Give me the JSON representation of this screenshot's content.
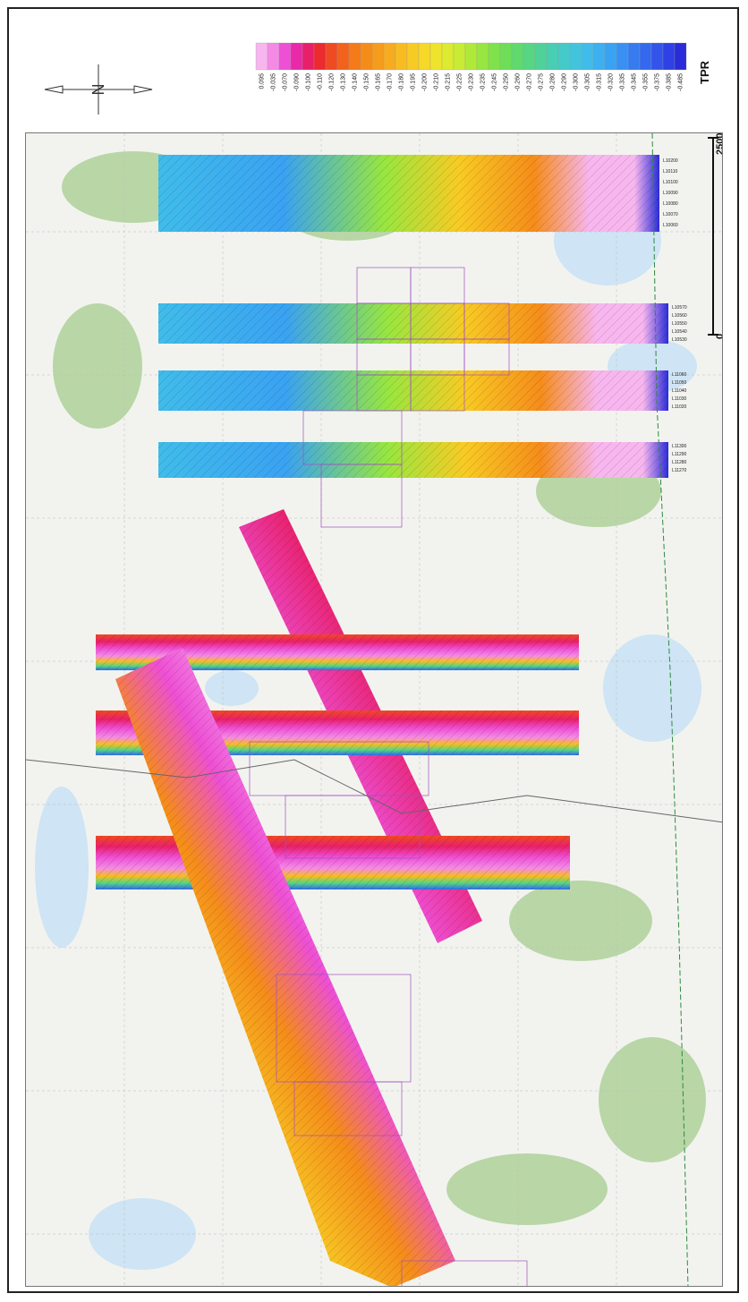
{
  "legend": {
    "title": "TPR",
    "values": [
      "0.095",
      "-0.035",
      "-0.070",
      "-0.090",
      "-0.100",
      "-0.110",
      "-0.120",
      "-0.130",
      "-0.140",
      "-0.150",
      "-0.165",
      "-0.170",
      "-0.180",
      "-0.195",
      "-0.200",
      "-0.210",
      "-0.215",
      "-0.225",
      "-0.230",
      "-0.235",
      "-0.245",
      "-0.250",
      "-0.260",
      "-0.270",
      "-0.275",
      "-0.280",
      "-0.290",
      "-0.300",
      "-0.305",
      "-0.315",
      "-0.320",
      "-0.335",
      "-0.345",
      "-0.355",
      "-0.375",
      "-0.385",
      "-0.485"
    ],
    "colors": [
      "#f7b6ee",
      "#f48ae6",
      "#ee4fd4",
      "#e82aa8",
      "#e8206a",
      "#ec2a30",
      "#f04a22",
      "#f2621c",
      "#f47a1a",
      "#f58c1a",
      "#f69c1c",
      "#f7ac20",
      "#f8bc22",
      "#f8cb24",
      "#f6d828",
      "#eee42c",
      "#dcea30",
      "#c8ec34",
      "#b0ea38",
      "#98e640",
      "#80e24a",
      "#6ede58",
      "#60da6c",
      "#56d682",
      "#4ed29a",
      "#48ceb2",
      "#44cac8",
      "#42c4dc",
      "#40bcea",
      "#3cb0f0",
      "#3aa2f2",
      "#3890f2",
      "#367cf0",
      "#3468ee",
      "#3254ea",
      "#2e40e6",
      "#2a2cd8"
    ]
  },
  "north_arrow": {
    "icon": "north-arrow-icon",
    "letter": "N"
  },
  "scale_bar": {
    "start": "0",
    "end": "2500"
  },
  "survey_lines": {
    "block_a": [
      "L10200",
      "L10110",
      "L10100",
      "L10090",
      "L10080",
      "L10070",
      "L10060"
    ],
    "block_b": [
      "L10570",
      "L10560",
      "L10550",
      "L10540",
      "L10530"
    ],
    "block_c": [
      "L11060",
      "L11050",
      "L11040",
      "L11030",
      "L11020"
    ],
    "block_d": [
      "L11300",
      "L11290",
      "L11280",
      "L11270"
    ]
  },
  "map_colors": {
    "water": "#cfe4f4",
    "forest": "#b9d6a6",
    "land": "#f2f3ef",
    "claims": "#a050c0",
    "road": "#666666"
  }
}
